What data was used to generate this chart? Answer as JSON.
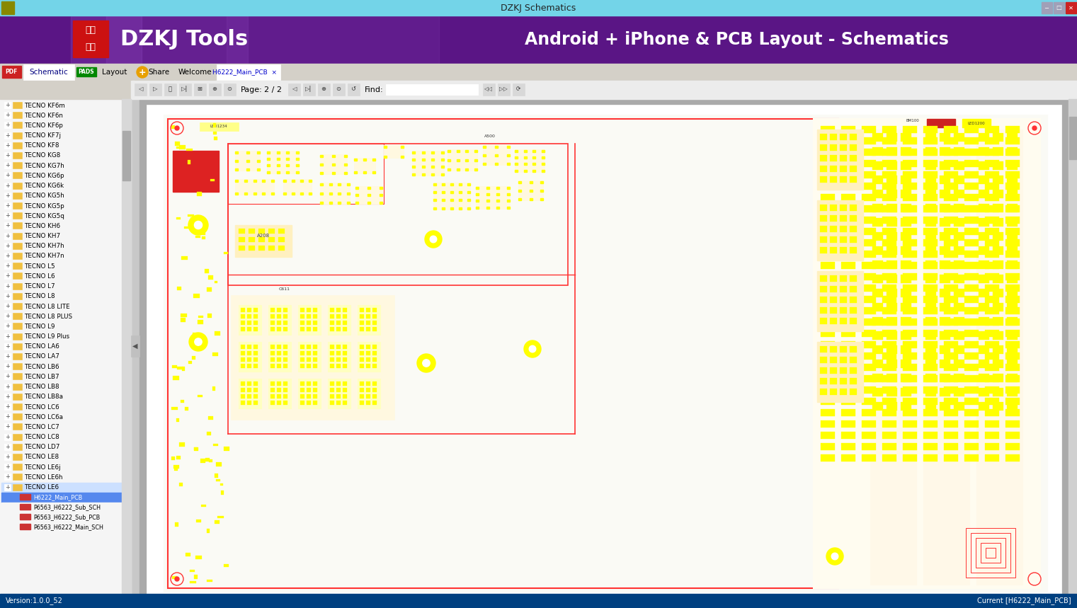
{
  "title_bar_text": "DZKJ Schematics",
  "title_bar_bg": "#73d4e8",
  "header_text": "Android + iPhone & PCB Layout - Schematics",
  "header_dzkj_text": "DZKJ Tools",
  "sidebar_items": [
    "TECNO KF6m",
    "TECNO KF6n",
    "TECNO KF6p",
    "TECNO KF7j",
    "TECNO KF8",
    "TECNO KG8",
    "TECNO KG7h",
    "TECNO KG6p",
    "TECNO KG6k",
    "TECNO KG5h",
    "TECNO KG5p",
    "TECNO KG5q",
    "TECNO KH6",
    "TECNO KH7",
    "TECNO KH7h",
    "TECNO KH7n",
    "TECNO L5",
    "TECNO L6",
    "TECNO L7",
    "TECNO L8",
    "TECNO L8 LITE",
    "TECNO L8 PLUS",
    "TECNO L9",
    "TECNO L9 Plus",
    "TECNO LA6",
    "TECNO LA7",
    "TECNO LB6",
    "TECNO LB7",
    "TECNO LB8",
    "TECNO LB8a",
    "TECNO LC6",
    "TECNO LC6a",
    "TECNO LC7",
    "TECNO LC8",
    "TECNO LD7",
    "TECNO LE8",
    "TECNO LE6j",
    "TECNO LE6h",
    "TECNO LE6"
  ],
  "selected_sidebar_item": "TECNO LE6",
  "sub_items_display": [
    [
      "H6222_Main_PCB",
      true
    ],
    [
      "P6563_H6222_Sub_SCH",
      false
    ],
    [
      "P6563_H6222_Sub_PCB",
      false
    ],
    [
      "P6563_H6222_Main_SCH",
      false
    ]
  ],
  "bottom_bar_text": "Version:1.0.0_52",
  "bottom_bar_right": "Current [H6222_Main_PCB]",
  "toolbar_page": "2 / 2"
}
